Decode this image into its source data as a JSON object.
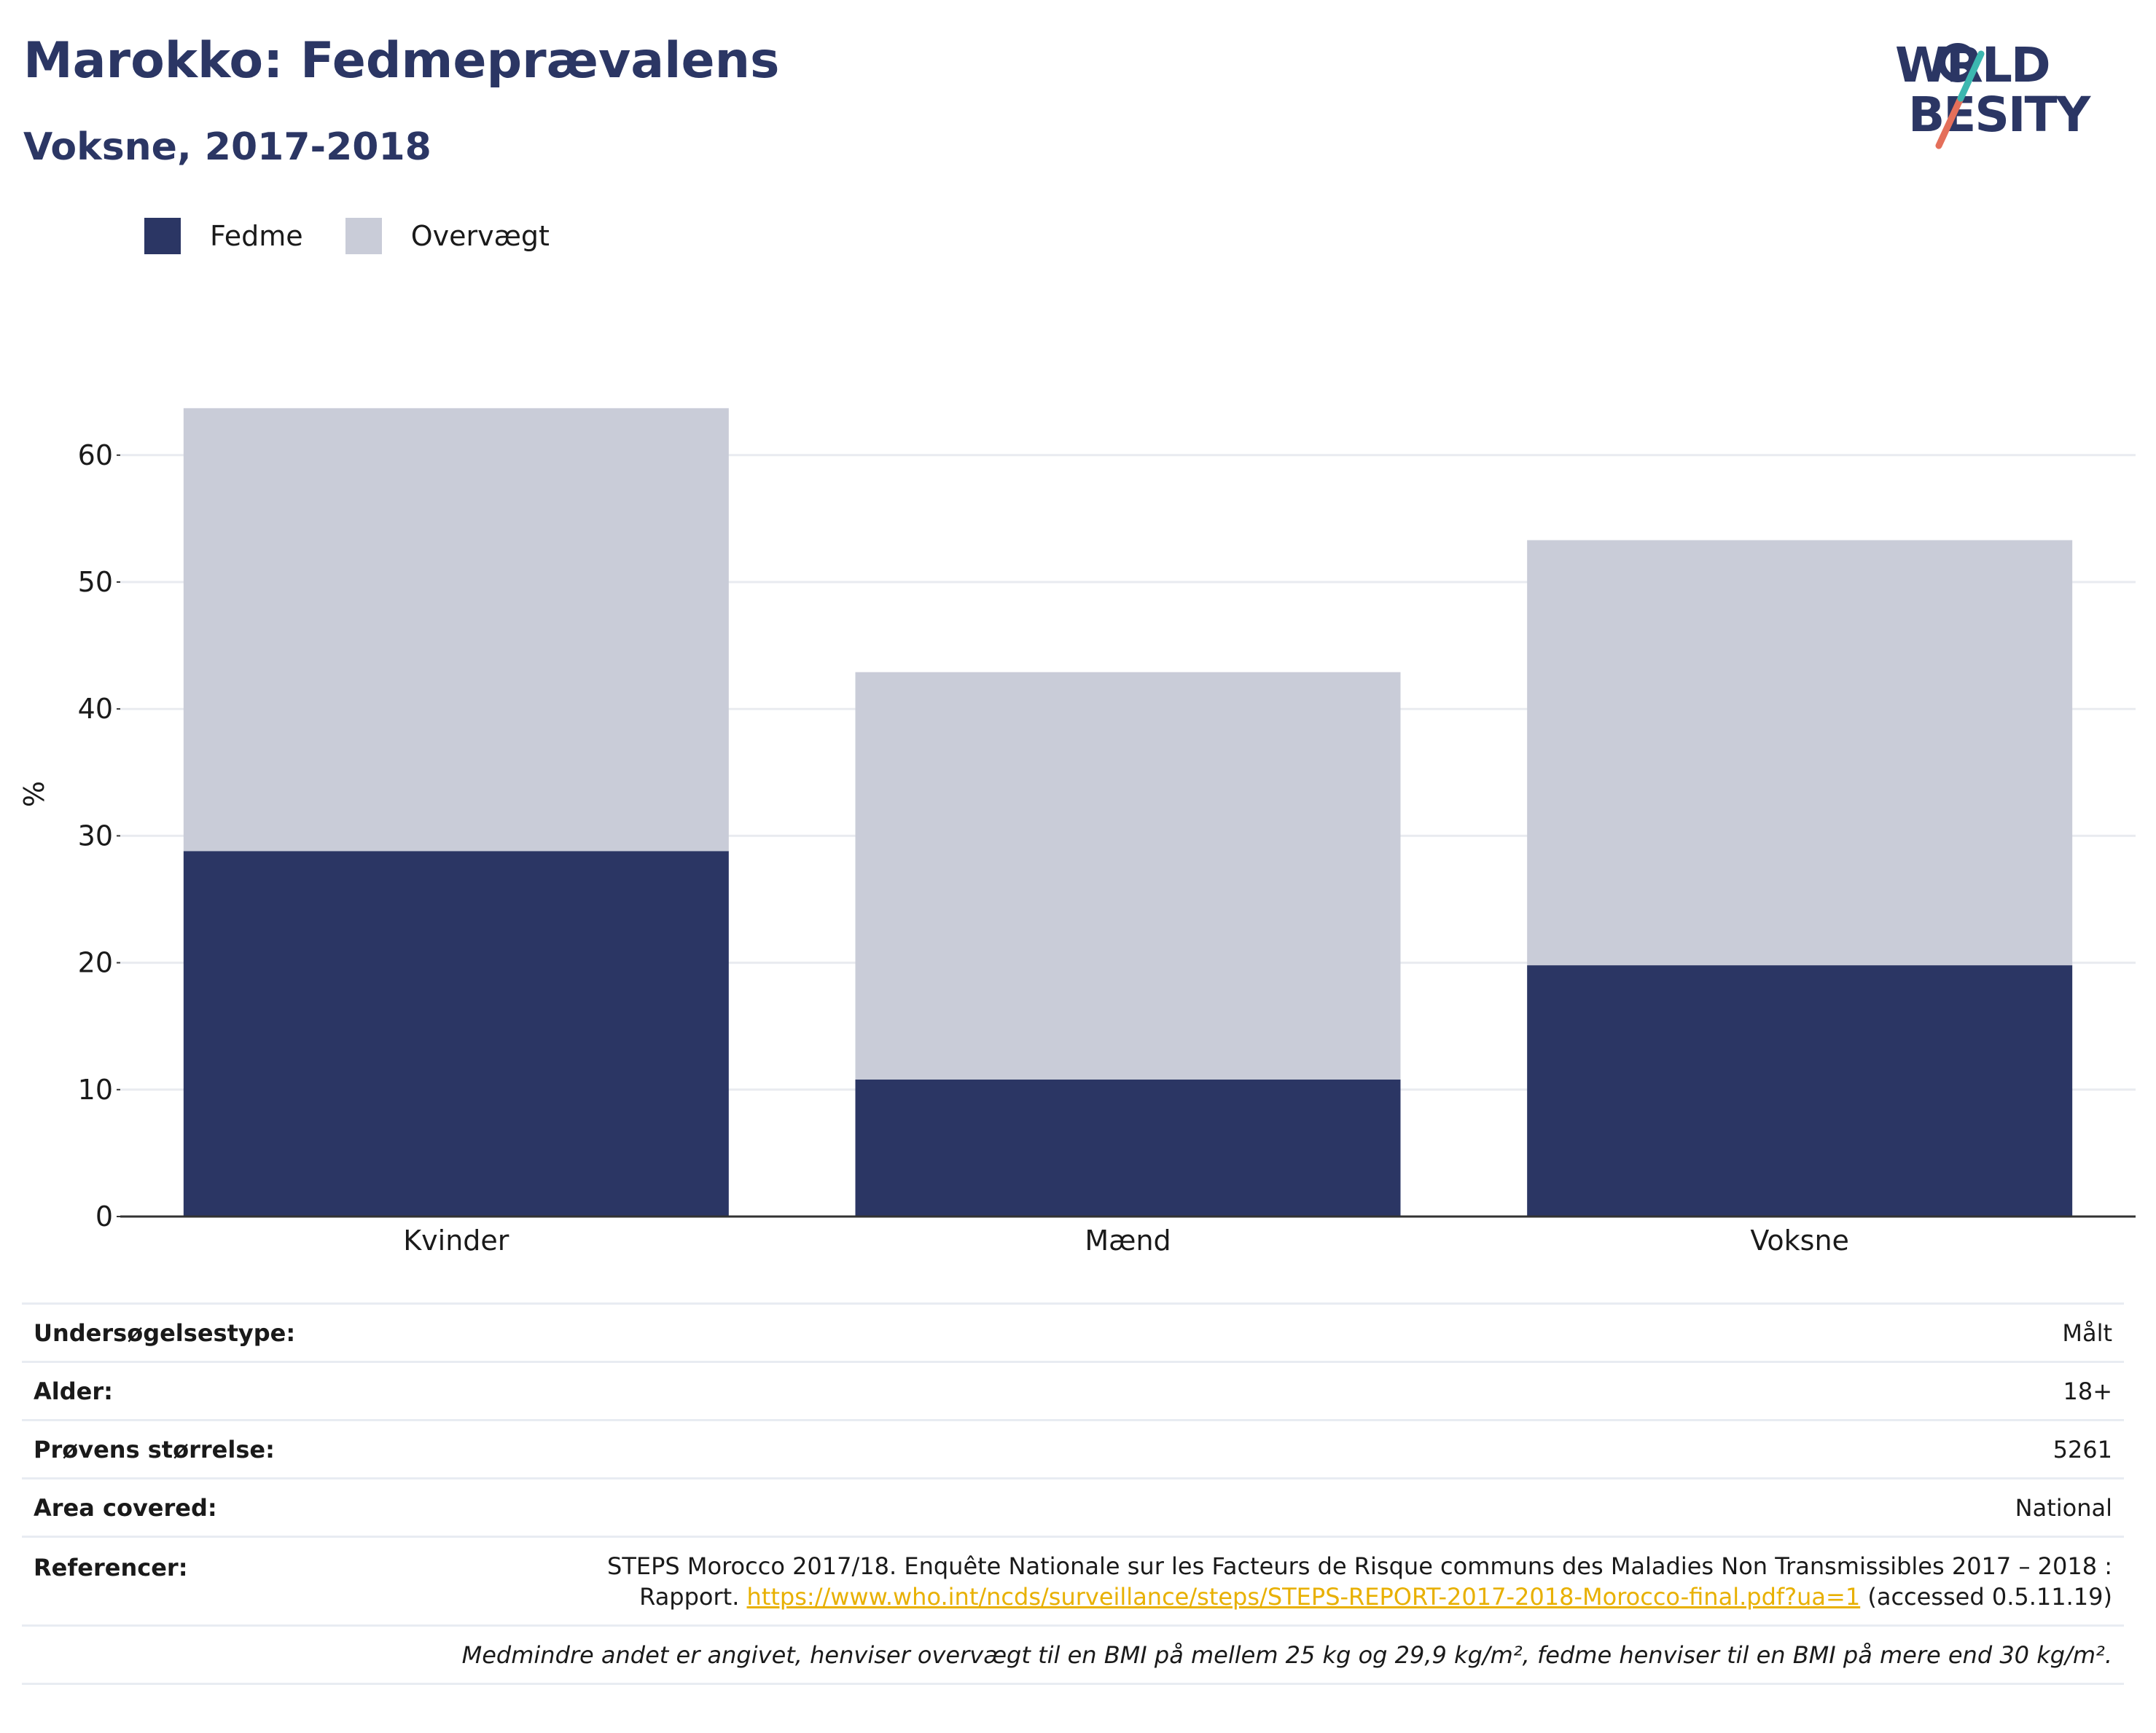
{
  "header": {
    "title": "Marokko: Fedmeprævalens",
    "subtitle": "Voksne, 2017-2018"
  },
  "logo": {
    "line1": "WORLD",
    "line2": "OBESITY"
  },
  "legend": {
    "items": [
      {
        "label": "Fedme",
        "color": "#2b3664"
      },
      {
        "label": "Overvægt",
        "color": "#c9ccd8"
      }
    ]
  },
  "chart_data": {
    "type": "bar",
    "stacked": true,
    "categories": [
      "Kvinder",
      "Mænd",
      "Voksne"
    ],
    "series": [
      {
        "name": "Fedme",
        "color": "#2b3664",
        "values": [
          28.8,
          10.8,
          19.8
        ]
      },
      {
        "name": "Overvægt",
        "color": "#c9ccd8",
        "values": [
          34.9,
          32.1,
          33.5
        ]
      }
    ],
    "ylabel": "%",
    "ylim": [
      0,
      65
    ],
    "yticks": [
      0,
      10,
      20,
      30,
      40,
      50,
      60
    ],
    "grid": true,
    "legend_position": "top-left"
  },
  "info": {
    "rows": [
      {
        "label": "Undersøgelsestype:",
        "value": "Målt"
      },
      {
        "label": "Alder:",
        "value": "18+"
      },
      {
        "label": "Prøvens størrelse:",
        "value": "5261"
      },
      {
        "label": "Area covered:",
        "value": "National"
      }
    ],
    "references": {
      "label": "Referencer:",
      "line1": "STEPS Morocco 2017/18. Enquête Nationale sur les Facteurs de Risque communs des Maladies Non Transmissibles 2017 – 2018 :",
      "prefix": "Rapport.",
      "link": "https://www.who.int/ncds/surveillance/steps/STEPS-REPORT-2017-2018-Morocco-final.pdf?ua=1",
      "suffix": "(accessed 0.5.11.19)"
    },
    "note": "Medmindre andet er angivet, henviser overvægt til en BMI på mellem 25 kg og 29,9 kg/m², fedme henviser til en BMI på mere end 30 kg/m²."
  }
}
